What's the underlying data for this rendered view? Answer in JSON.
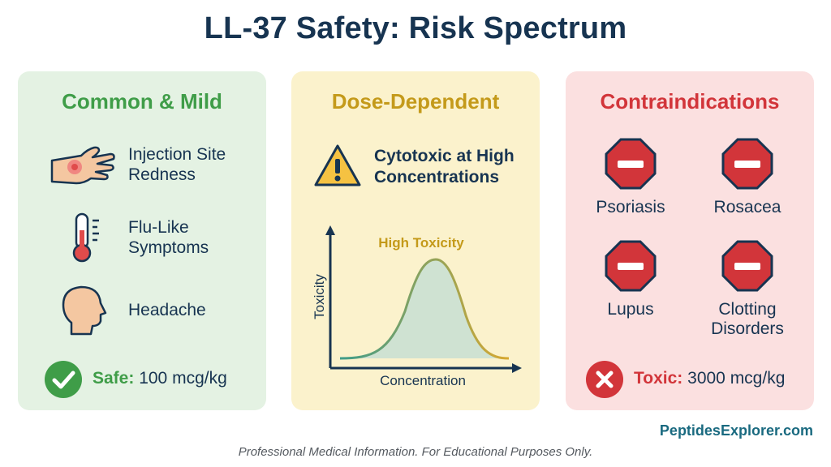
{
  "title": "LL-37 Safety: Risk Spectrum",
  "mild": {
    "heading": "Common & Mild",
    "items": [
      {
        "line1": "Injection Site",
        "line2": "Redness",
        "icon": "hand-redness-icon"
      },
      {
        "line1": "Flu-Like",
        "line2": "Symptoms",
        "icon": "thermometer-icon"
      },
      {
        "line1": "Headache",
        "line2": "",
        "icon": "head-icon"
      }
    ],
    "safe_label": "Safe:",
    "safe_value": "100 mcg/kg"
  },
  "dose": {
    "heading": "Dose-Dependent",
    "warning_line1": "Cytotoxic at High",
    "warning_line2": "Concentrations",
    "curve_label": "High Toxicity",
    "xlabel": "Concentration",
    "ylabel": "Toxicity"
  },
  "contra": {
    "heading": "Contraindications",
    "items": [
      {
        "line1": "Psoriasis",
        "line2": ""
      },
      {
        "line1": "Rosacea",
        "line2": ""
      },
      {
        "line1": "Lupus",
        "line2": ""
      },
      {
        "line1": "Clotting",
        "line2": "Disorders"
      }
    ],
    "toxic_label": "Toxic:",
    "toxic_value": "3000 mcg/kg"
  },
  "brand": "PeptidesExplorer.com",
  "disclaimer": "Professional Medical Information. For Educational Purposes Only.",
  "colors": {
    "navy": "#173451",
    "green": "#3f9d48",
    "gold": "#c49a1a",
    "red": "#d2353a"
  }
}
